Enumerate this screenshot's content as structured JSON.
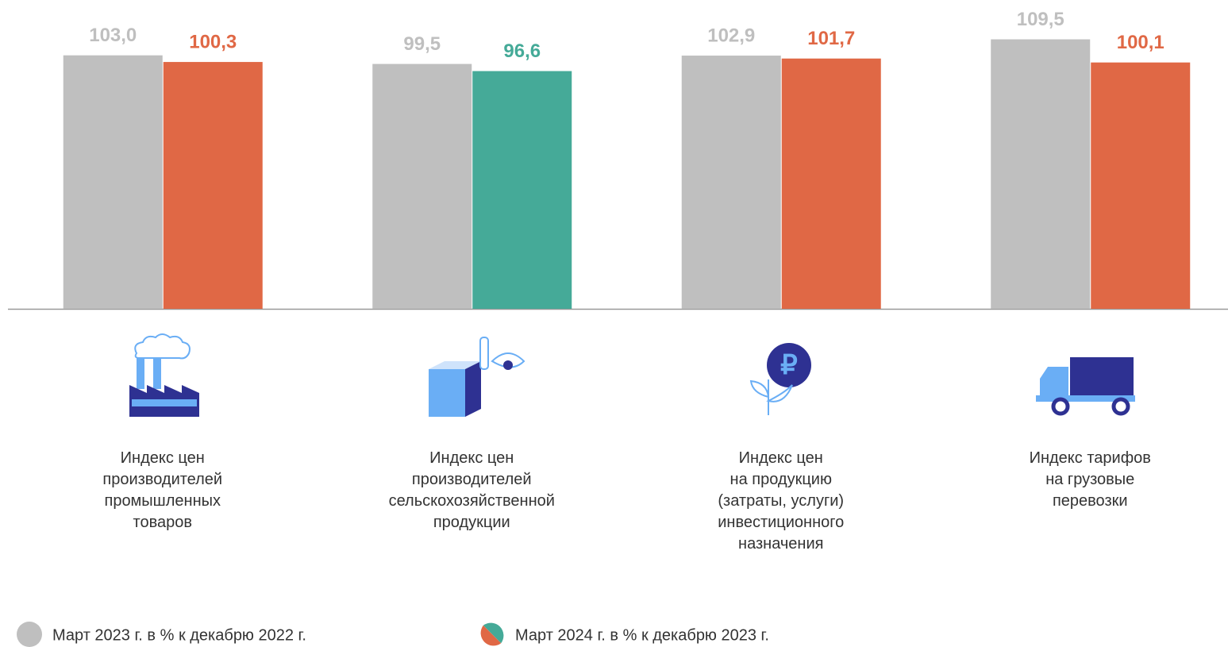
{
  "chart_data": {
    "type": "bar",
    "categories": [
      "Индекс цен\nпроизводителей\nпромышленных\nтоваров",
      "Индекс цен\nпроизводителей\nсельскохозяйственной\nпродукции",
      "Индекс цен\nна продукцию\n(затраты, услуги)\nинвестиционного\nназначения",
      "Индекс тарифов\nна грузовые\nперевозки"
    ],
    "series": [
      {
        "name": "Март 2023 г. в % к декабрю 2022 г.",
        "colors": [
          "#bfbfbf",
          "#bfbfbf",
          "#bfbfbf",
          "#bfbfbf"
        ],
        "values": [
          103.0,
          99.5,
          102.9,
          109.5
        ],
        "value_labels": [
          "103,0",
          "99,5",
          "102,9",
          "109,5"
        ]
      },
      {
        "name": "Март 2024 г. в % к декабрю 2023 г.",
        "colors": [
          "#e06845",
          "#45aa98",
          "#e06845",
          "#e06845"
        ],
        "values": [
          100.3,
          96.6,
          101.7,
          100.1
        ],
        "value_labels": [
          "100,3",
          "96,6",
          "101,7",
          "100,1"
        ]
      }
    ],
    "ylim": [
      0,
      125
    ]
  }
}
